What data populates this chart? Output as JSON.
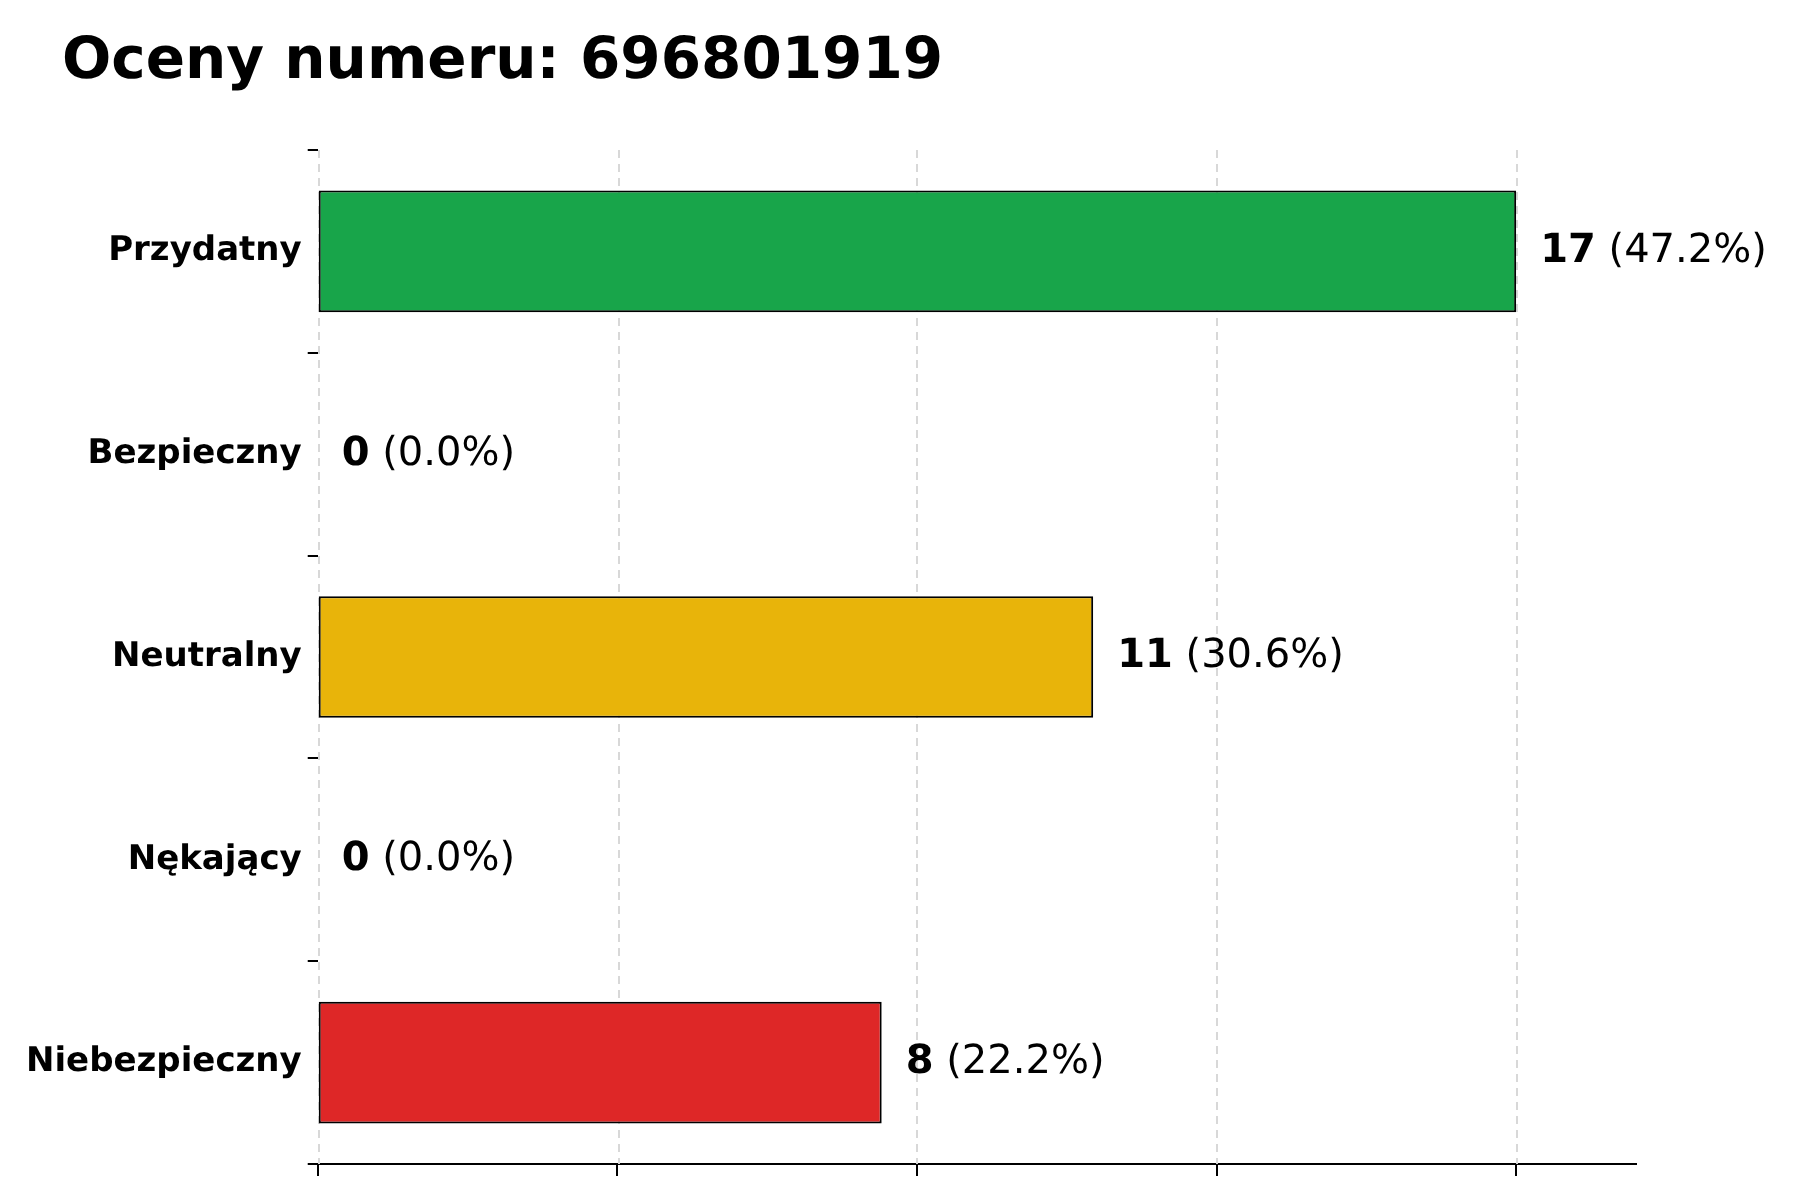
{
  "chart_data": {
    "type": "bar",
    "orientation": "horizontal",
    "title": "Oceny numeru: 696801919",
    "categories": [
      "Przydatny",
      "Bezpieczny",
      "Neutralny",
      "Nękający",
      "Niebezpieczny"
    ],
    "values": [
      17,
      0,
      11,
      0,
      8
    ],
    "colors": [
      "#18a54a",
      "#888888",
      "#e8b40a",
      "#555555",
      "#de2727"
    ],
    "value_labels": [
      "17 (47.2%)",
      "0 (0.0%)",
      "11 (30.6%)",
      "0 (0.0%)",
      "8 (22.2%)"
    ],
    "xlim": [
      0,
      18.7
    ],
    "xticks": [
      {
        "value": 0,
        "label": null
      },
      {
        "value": 4.25,
        "label": null
      },
      {
        "value": 8.5,
        "label": null
      },
      {
        "value": 12.75,
        "label": null
      },
      {
        "value": 17,
        "label": null
      }
    ],
    "tick_labels": "y",
    "grid": "x",
    "legend": false
  }
}
